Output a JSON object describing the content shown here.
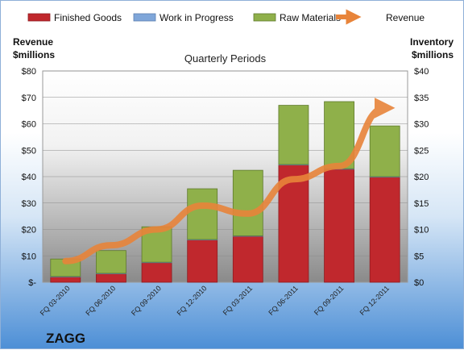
{
  "chart_data": {
    "type": "bar",
    "stacked": true,
    "secondary_type": "line",
    "title": "Quarterly Periods",
    "company": "ZAGG",
    "ylabel_left": [
      "Revenue",
      "$millions"
    ],
    "ylabel_right": [
      "Inventory",
      "$millions"
    ],
    "categories": [
      "FQ 03-2010",
      "FQ 06-2010",
      "FQ 09-2010",
      "FQ 12-2010",
      "FQ 03-2011",
      "FQ 06-2011",
      "FQ 09-2011",
      "FQ 12-2011"
    ],
    "series": [
      {
        "name": "Finished Goods",
        "axis": "right",
        "color": "#c0282d",
        "values": [
          1.0,
          1.6,
          3.7,
          8.0,
          8.7,
          22.2,
          21.4,
          19.9
        ]
      },
      {
        "name": "Work in Progress",
        "axis": "right",
        "color": "#7fa6d9",
        "values": [
          0.1,
          0.1,
          0.1,
          0.1,
          0.1,
          0.1,
          0.1,
          0.1
        ]
      },
      {
        "name": "Raw Materials",
        "axis": "right",
        "color": "#8fb04a",
        "values": [
          3.3,
          4.3,
          6.7,
          9.6,
          12.4,
          11.2,
          12.7,
          9.6
        ]
      }
    ],
    "line": {
      "name": "Revenue",
      "axis": "left",
      "color": "#e8843a",
      "values": [
        8,
        14,
        20,
        29,
        26,
        39,
        44,
        66
      ]
    },
    "ylim_left": [
      0,
      80
    ],
    "ylim_right": [
      0,
      40
    ],
    "yticks_left": [
      "$-",
      "$10",
      "$20",
      "$30",
      "$40",
      "$50",
      "$60",
      "$70",
      "$80"
    ],
    "yticks_right": [
      "$0",
      "$5",
      "$10",
      "$15",
      "$20",
      "$25",
      "$30",
      "$35",
      "$40"
    ],
    "legend_position": "top",
    "grid": true
  }
}
